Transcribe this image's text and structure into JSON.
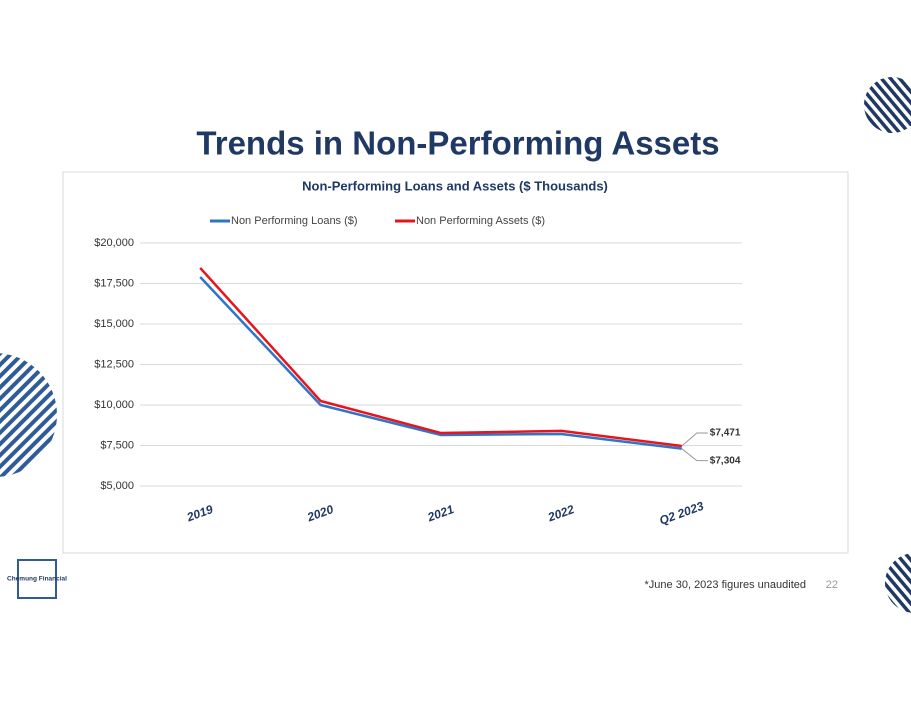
{
  "title": "Trends in Non-Performing Assets",
  "chart_data": {
    "type": "line",
    "title": "Non-Performing Loans and Assets ($ Thousands)",
    "categories": [
      "2019",
      "2020",
      "2021",
      "2022",
      "Q2 2023"
    ],
    "series": [
      {
        "name": "Non Performing Loans ($)",
        "color": "#2e75c8",
        "values": [
          17900,
          10000,
          8150,
          8210,
          7304
        ],
        "value_labels": [
          null,
          null,
          null,
          null,
          "$7,304"
        ]
      },
      {
        "name": "Non Performing Assets ($)",
        "color": "#e8141b",
        "values": [
          18460,
          10250,
          8270,
          8400,
          7471
        ],
        "value_labels": [
          null,
          null,
          null,
          null,
          "$7,471"
        ]
      }
    ],
    "ylim": [
      5000,
      20000
    ],
    "yticks": [
      {
        "value": 5000,
        "label": "$5,000"
      },
      {
        "value": 7500,
        "label": "$7,500"
      },
      {
        "value": 10000,
        "label": "$10,000"
      },
      {
        "value": 12500,
        "label": "$12,500"
      },
      {
        "value": 15000,
        "label": "$15,000"
      },
      {
        "value": 17500,
        "label": "$17,500"
      },
      {
        "value": 20000,
        "label": "$20,000"
      }
    ],
    "grid": true,
    "legend": "top"
  },
  "footer": {
    "note": "*June 30, 2023 figures unaudited",
    "page": 22
  },
  "logo": {
    "name": "Chemung Financial"
  }
}
